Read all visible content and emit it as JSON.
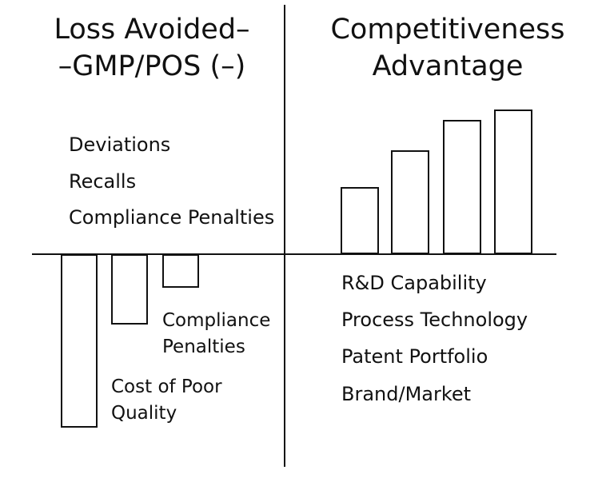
{
  "left_panel": {
    "title_line1": "Loss Avoided–",
    "title_line2": "–GMP/POS (–)",
    "items": [
      "Deviations",
      "Recalls",
      "Compliance Penalties"
    ],
    "bar_labels": {
      "compliance_line1": "Compliance",
      "compliance_line2": "Penalties",
      "cost_line1": "Cost of Poor",
      "cost_line2": "Quality"
    }
  },
  "right_panel": {
    "title_line1": "Competitiveness",
    "title_line2": "Advantage",
    "items": [
      "R&D Capability",
      "Process Technology",
      "Patent Portfolio",
      "Brand/Market"
    ]
  },
  "chart_data": [
    {
      "type": "bar",
      "direction": "down",
      "values": [
        217,
        88,
        42
      ]
    },
    {
      "type": "bar",
      "direction": "up",
      "values": [
        84,
        130,
        168,
        181
      ]
    }
  ]
}
